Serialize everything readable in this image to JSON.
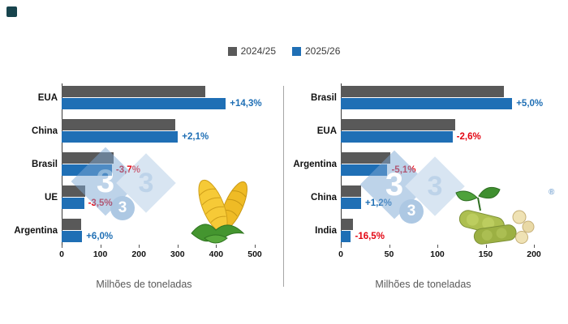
{
  "legend": {
    "items": [
      {
        "label": "2024/25",
        "color": "#595959"
      },
      {
        "label": "2025/26",
        "color": "#1F6FB5"
      }
    ]
  },
  "colors": {
    "positive": "#1F6FB5",
    "negative": "#E30613",
    "bar_2024_25": "#595959",
    "bar_2025_26": "#1F6FB5",
    "watermark_blue": "#7EA8D4"
  },
  "watermark": {
    "digit": "3",
    "registered": "®"
  },
  "chart_data": [
    {
      "type": "bar",
      "orientation": "horizontal",
      "illustration": "corn",
      "categories": [
        "EUA",
        "China",
        "Brasil",
        "UE",
        "Argentina"
      ],
      "series": [
        {
          "name": "2024/25",
          "values": [
            372,
            295,
            135,
            60,
            50
          ]
        },
        {
          "name": "2025/26",
          "values": [
            425,
            301,
            130,
            58,
            53
          ]
        }
      ],
      "change_labels": [
        "+14,3%",
        "+2,1%",
        "-3,7%",
        "-3,5%",
        "+6,0%"
      ],
      "xlabel": "Milhões de toneladas",
      "xlim": [
        0,
        500
      ],
      "xticks": [
        0,
        100,
        200,
        300,
        400,
        500
      ],
      "grid": false,
      "legend_position": "top-center"
    },
    {
      "type": "bar",
      "orientation": "horizontal",
      "illustration": "soybean",
      "categories": [
        "Brasil",
        "EUA",
        "Argentina",
        "China",
        "India"
      ],
      "series": [
        {
          "name": "2024/25",
          "values": [
            169,
            118.8,
            50.9,
            20.7,
            12.6
          ]
        },
        {
          "name": "2025/26",
          "values": [
            177.5,
            115.7,
            48.3,
            21,
            10.5
          ]
        }
      ],
      "change_labels": [
        "+5,0%",
        "-2,6%",
        "-5,1%",
        "+1,2%",
        "-16,5%"
      ],
      "xlabel": "Milhões de toneladas",
      "xlim": [
        0,
        200
      ],
      "xticks": [
        0,
        50,
        100,
        150,
        200
      ],
      "grid": false,
      "legend_position": "top-center"
    }
  ]
}
